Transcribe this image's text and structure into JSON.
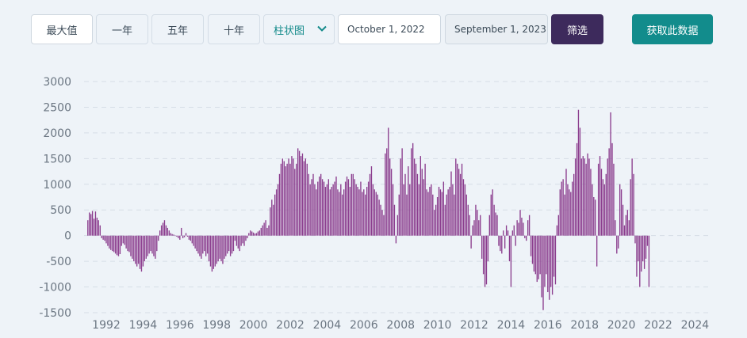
{
  "toolbar": {
    "range_buttons": [
      "最大值",
      "一年",
      "五年",
      "十年"
    ],
    "chart_type_select": "柱状图",
    "start_date": "October 1, 2022",
    "end_date": "September 1, 2023",
    "filter_label": "筛选",
    "fetch_label": "获取此数据"
  },
  "colors": {
    "bar": "#8b3d8e",
    "filter_button": "#3d2a5c",
    "fetch_button": "#128c8c",
    "background": "#eef3f8"
  },
  "chart_data": {
    "type": "bar",
    "x_start": "1991-01",
    "x_step": "month",
    "ylim": [
      -1500,
      3000
    ],
    "yticks": [
      "3000",
      "2500",
      "2000",
      "1500",
      "1000",
      "500",
      "0",
      "-500",
      "-1000",
      "-1500"
    ],
    "xticks": [
      "1992",
      "1994",
      "1996",
      "1998",
      "2000",
      "2002",
      "2004",
      "2006",
      "2008",
      "2010",
      "2012",
      "2014",
      "2016",
      "2018",
      "2020",
      "2022",
      "2024"
    ],
    "grid": true,
    "values": [
      300,
      450,
      420,
      480,
      330,
      470,
      350,
      300,
      200,
      -50,
      -80,
      -100,
      -150,
      -200,
      -250,
      -280,
      -300,
      -320,
      -350,
      -380,
      -400,
      -360,
      -200,
      -150,
      -180,
      -250,
      -300,
      -320,
      -400,
      -450,
      -500,
      -550,
      -600,
      -550,
      -650,
      -700,
      -600,
      -500,
      -450,
      -400,
      -350,
      -300,
      -350,
      -400,
      -450,
      -300,
      -100,
      100,
      200,
      250,
      300,
      200,
      150,
      100,
      50,
      30,
      20,
      0,
      -20,
      -50,
      -80,
      150,
      -50,
      -30,
      50,
      -20,
      -80,
      -100,
      -150,
      -200,
      -250,
      -300,
      -350,
      -400,
      -450,
      -350,
      -300,
      -400,
      -350,
      -500,
      -600,
      -700,
      -650,
      -600,
      -550,
      -500,
      -450,
      -500,
      -550,
      -450,
      -400,
      -350,
      -300,
      -400,
      -350,
      -300,
      -100,
      -200,
      -250,
      -300,
      -200,
      -150,
      -200,
      -100,
      -50,
      50,
      100,
      80,
      60,
      40,
      50,
      80,
      100,
      150,
      200,
      250,
      300,
      150,
      200,
      550,
      700,
      600,
      800,
      900,
      1000,
      1200,
      1400,
      1500,
      1450,
      1350,
      1400,
      1500,
      1400,
      1550,
      1500,
      1300,
      1400,
      1700,
      1650,
      1550,
      1600,
      1450,
      1500,
      1400,
      1200,
      1000,
      1100,
      1200,
      1000,
      900,
      1050,
      1150,
      1200,
      1100,
      1050,
      950,
      1000,
      1100,
      900,
      950,
      1000,
      1050,
      1150,
      900,
      850,
      1000,
      800,
      900,
      1050,
      1150,
      1100,
      950,
      1200,
      1200,
      1100,
      1000,
      950,
      900,
      1050,
      850,
      900,
      800,
      950,
      1050,
      1200,
      1350,
      1000,
      900,
      850,
      800,
      700,
      600,
      500,
      400,
      1600,
      1700,
      2100,
      1500,
      1300,
      1000,
      600,
      -150,
      400,
      800,
      1500,
      1700,
      1000,
      1200,
      800,
      1350,
      1000,
      1700,
      1800,
      1500,
      1400,
      1200,
      1000,
      1550,
      1300,
      1100,
      1400,
      900,
      850,
      950,
      1000,
      800,
      500,
      600,
      750,
      950,
      900,
      850,
      1050,
      600,
      800,
      900,
      950,
      1250,
      1000,
      800,
      1500,
      1400,
      1300,
      1200,
      1400,
      1100,
      1000,
      800,
      600,
      400,
      -250,
      200,
      300,
      600,
      500,
      300,
      400,
      -450,
      -750,
      -1000,
      -950,
      -500,
      400,
      800,
      900,
      600,
      450,
      400,
      -200,
      -300,
      -350,
      100,
      -250,
      200,
      100,
      -500,
      -1000,
      100,
      200,
      -200,
      300,
      250,
      500,
      350,
      250,
      -50,
      -100,
      300,
      400,
      -400,
      -550,
      -700,
      -750,
      -900,
      -850,
      -750,
      -1200,
      -1450,
      -1000,
      -750,
      -1100,
      -1250,
      -1000,
      -1150,
      -800,
      -950,
      200,
      400,
      900,
      1050,
      1100,
      800,
      1300,
      1000,
      900,
      850,
      1050,
      1200,
      1500,
      1800,
      2450,
      2100,
      1500,
      1550,
      1500,
      1400,
      1600,
      1500,
      1300,
      1000,
      750,
      700,
      -600,
      1400,
      1550,
      1300,
      1100,
      1000,
      1200,
      1500,
      1700,
      2400,
      1800,
      1400,
      300,
      -350,
      -250,
      1000,
      900,
      600,
      200,
      400,
      500,
      300,
      1100,
      1500,
      1200,
      -150,
      -800,
      -500,
      -1000,
      -700,
      -500,
      -650,
      -450,
      -200,
      -1000
    ]
  }
}
